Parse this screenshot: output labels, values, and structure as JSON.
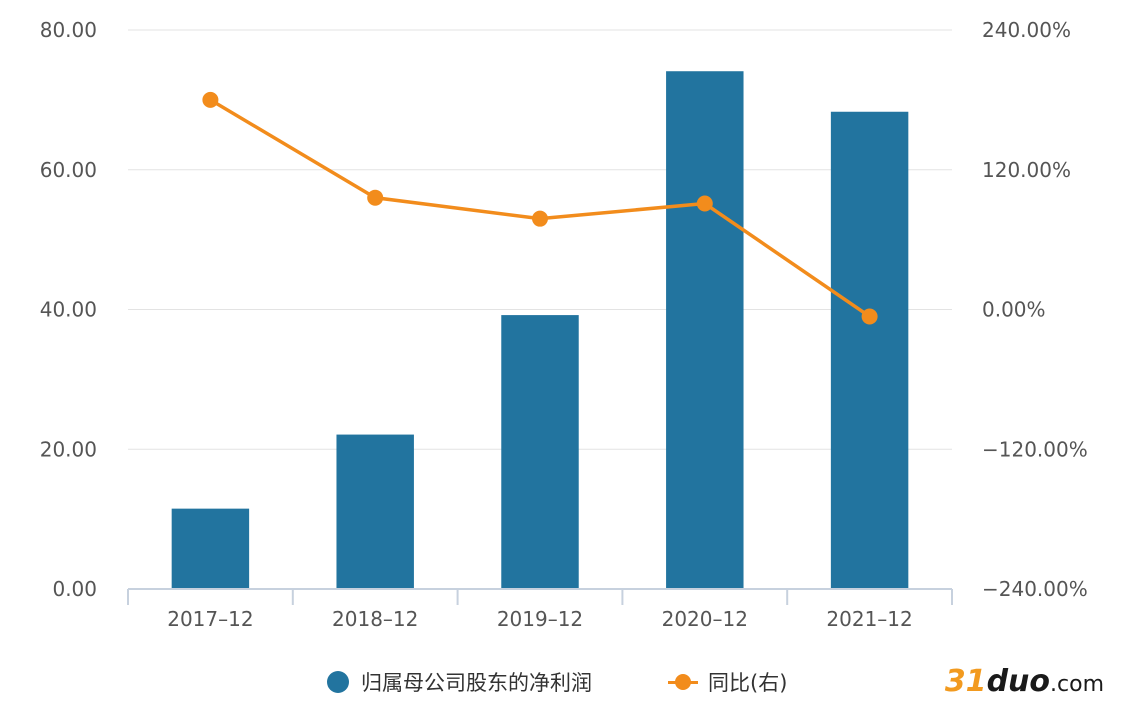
{
  "chart_data": {
    "type": "bar",
    "categories": [
      "2017-12",
      "2018-12",
      "2019-12",
      "2020-12",
      "2021-12"
    ],
    "series": [
      {
        "name": "归属母公司股东的净利润",
        "type": "bar",
        "axis": "left",
        "color": "#22749f",
        "values": [
          11.5,
          22.1,
          39.2,
          74.1,
          68.3
        ]
      },
      {
        "name": "同比(右)",
        "type": "line",
        "axis": "right",
        "color": "#f28c1c",
        "values": [
          180.0,
          96.0,
          78.0,
          91.0,
          -6.0
        ]
      }
    ],
    "left_axis": {
      "min": 0,
      "max": 80,
      "ticks": [
        "80.00",
        "60.00",
        "40.00",
        "20.00",
        "0.00"
      ]
    },
    "right_axis": {
      "min": -240,
      "max": 240,
      "ticks": [
        "240.00%",
        "120.00%",
        "0.00%",
        "-120.00%",
        "-240.00%"
      ]
    },
    "grid": true,
    "legend_position": "bottom"
  },
  "watermark": {
    "part1": "31",
    "part2": "duo",
    "part3": ".com"
  }
}
